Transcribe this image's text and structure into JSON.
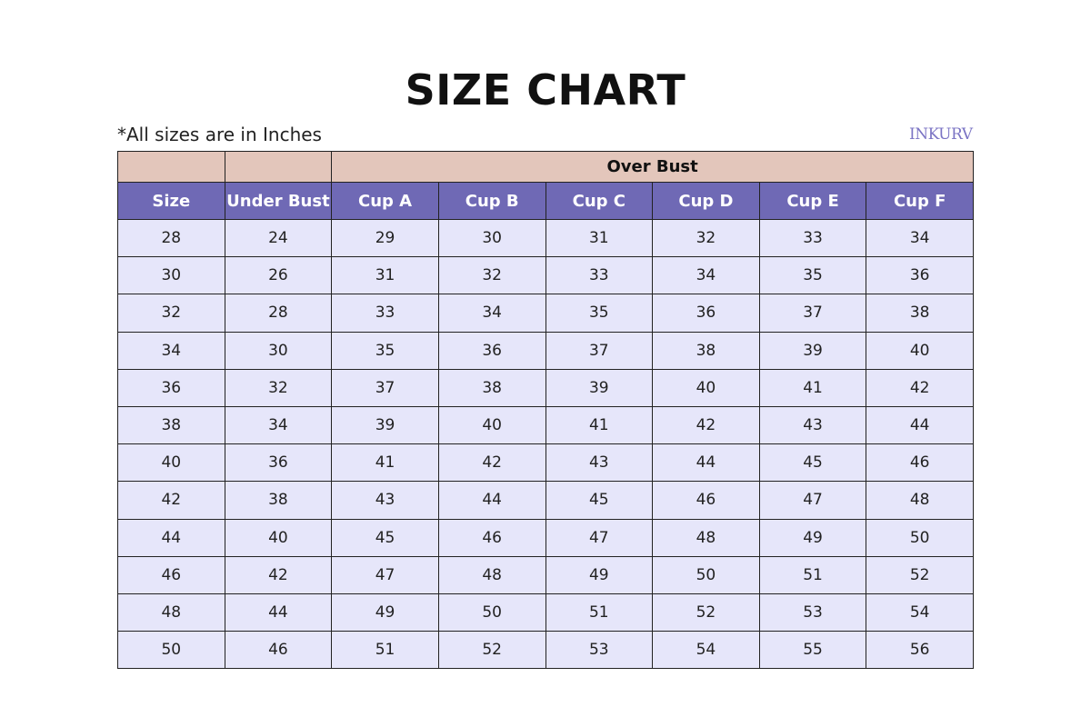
{
  "title": "SIZE CHART",
  "note": "*All sizes are in Inches",
  "logo": "INKURV",
  "colors": {
    "group_header": "#e3c6bb",
    "column_header": "#6f69b5",
    "cell": "#e6e6fa"
  },
  "table": {
    "group_header": "Over Bust",
    "columns": [
      "Size",
      "Under Bust",
      "Cup A",
      "Cup B",
      "Cup C",
      "Cup D",
      "Cup E",
      "Cup F"
    ],
    "rows": [
      [
        "28",
        "24",
        "29",
        "30",
        "31",
        "32",
        "33",
        "34"
      ],
      [
        "30",
        "26",
        "31",
        "32",
        "33",
        "34",
        "35",
        "36"
      ],
      [
        "32",
        "28",
        "33",
        "34",
        "35",
        "36",
        "37",
        "38"
      ],
      [
        "34",
        "30",
        "35",
        "36",
        "37",
        "38",
        "39",
        "40"
      ],
      [
        "36",
        "32",
        "37",
        "38",
        "39",
        "40",
        "41",
        "42"
      ],
      [
        "38",
        "34",
        "39",
        "40",
        "41",
        "42",
        "43",
        "44"
      ],
      [
        "40",
        "36",
        "41",
        "42",
        "43",
        "44",
        "45",
        "46"
      ],
      [
        "42",
        "38",
        "43",
        "44",
        "45",
        "46",
        "47",
        "48"
      ],
      [
        "44",
        "40",
        "45",
        "46",
        "47",
        "48",
        "49",
        "50"
      ],
      [
        "46",
        "42",
        "47",
        "48",
        "49",
        "50",
        "51",
        "52"
      ],
      [
        "48",
        "44",
        "49",
        "50",
        "51",
        "52",
        "53",
        "54"
      ],
      [
        "50",
        "46",
        "51",
        "52",
        "53",
        "54",
        "55",
        "56"
      ]
    ]
  }
}
